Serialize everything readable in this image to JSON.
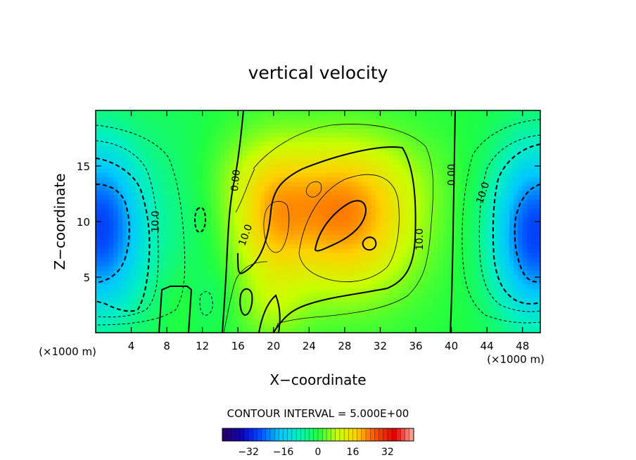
{
  "chart_data": {
    "type": "heatmap",
    "title": "vertical velocity",
    "xlabel": "X−coordinate",
    "ylabel": "Z−coordinate",
    "x_unit_left": "(×1000 m)",
    "x_unit_right": "(×1000 m)",
    "xlim": [
      0,
      50
    ],
    "ylim": [
      0,
      20
    ],
    "x_ticks": [
      4,
      8,
      12,
      16,
      20,
      24,
      28,
      32,
      36,
      40,
      44,
      48
    ],
    "y_ticks": [
      5,
      10,
      15
    ],
    "contour_interval_text": "CONTOUR INTERVAL = 5.000E+00",
    "contour_labels": [
      {
        "text": "0.00",
        "x": 15.7,
        "z": 13.7,
        "angle": -84
      },
      {
        "text": "0.00",
        "x": 40.0,
        "z": 14.2,
        "angle": -90
      },
      {
        "text": "10.0",
        "x": 6.7,
        "z": 10.0,
        "angle": -90
      },
      {
        "text": "10.0",
        "x": 16.8,
        "z": 8.8,
        "angle": -70
      },
      {
        "text": "10.0",
        "x": 36.4,
        "z": 8.4,
        "angle": -90
      },
      {
        "text": "10.0",
        "x": 43.5,
        "z": 12.6,
        "angle": -72
      }
    ],
    "colorbar": {
      "range": [
        -44,
        44
      ],
      "ticks": [
        -32,
        -16,
        0,
        16,
        32
      ],
      "tick_labels": [
        "−32",
        "−16",
        "0",
        "16",
        "32"
      ],
      "colors": [
        "#2a0060",
        "#1000c0",
        "#0050ff",
        "#00c8ff",
        "#00f0c0",
        "#20ff40",
        "#c8ff00",
        "#ffd000",
        "#ff5000",
        "#e00000",
        "#ffb0a0"
      ]
    },
    "field_features": [
      {
        "kind": "downdraft",
        "x": 0.5,
        "z": 9.5,
        "w": -28
      },
      {
        "kind": "downdraft",
        "x": 49.5,
        "z": 9.0,
        "w": -28
      },
      {
        "kind": "updraft",
        "x": 28,
        "z": 10,
        "w": 21
      },
      {
        "kind": "updraft",
        "x": 19,
        "z": 10,
        "w": 12
      }
    ]
  }
}
